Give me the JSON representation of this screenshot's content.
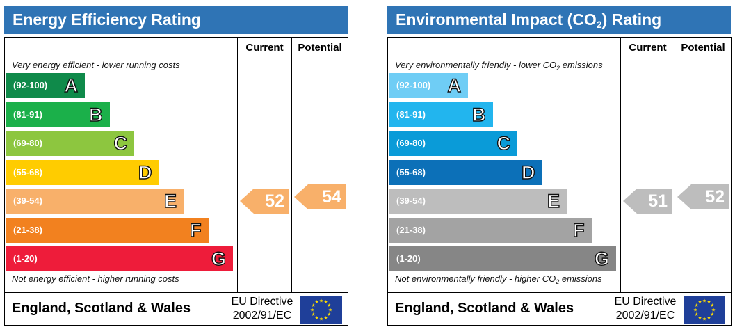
{
  "chart_data": [
    {
      "type": "bar",
      "title": "Energy Efficiency Rating",
      "columns": [
        "Current",
        "Potential"
      ],
      "top_note": "Very energy efficient - lower running costs",
      "bottom_note": "Not energy efficient - higher running costs",
      "bands": [
        {
          "range": "(92-100)",
          "letter": "A",
          "color": "#0f8a4a"
        },
        {
          "range": "(81-91)",
          "letter": "B",
          "color": "#1bb04a"
        },
        {
          "range": "(69-80)",
          "letter": "C",
          "color": "#8dc63f"
        },
        {
          "range": "(55-68)",
          "letter": "D",
          "color": "#ffcc00"
        },
        {
          "range": "(39-54)",
          "letter": "E",
          "color": "#f8b06a"
        },
        {
          "range": "(21-38)",
          "letter": "F",
          "color": "#f2811f"
        },
        {
          "range": "(1-20)",
          "letter": "G",
          "color": "#ee1c3a"
        }
      ],
      "current": {
        "value": 52,
        "band": "E",
        "color": "#f8b06a"
      },
      "potential": {
        "value": 54,
        "band": "E",
        "color": "#f8b06a"
      },
      "footer": {
        "region": "England, Scotland & Wales",
        "directive_line1": "EU Directive",
        "directive_line2": "2002/91/EC"
      }
    },
    {
      "type": "bar",
      "title_main": "Environmental Impact (CO",
      "title_sub": "2",
      "title_tail": ") Rating",
      "columns": [
        "Current",
        "Potential"
      ],
      "top_note_main": "Very environmentally friendly - lower CO",
      "top_note_sub": "2",
      "top_note_tail": " emissions",
      "bottom_note_main": "Not environmentally friendly - higher CO",
      "bottom_note_sub": "2",
      "bottom_note_tail": " emissions",
      "bands": [
        {
          "range": "(92-100)",
          "letter": "A",
          "color": "#6fcdf5"
        },
        {
          "range": "(81-91)",
          "letter": "B",
          "color": "#22b5ee"
        },
        {
          "range": "(69-80)",
          "letter": "C",
          "color": "#0a9bd8"
        },
        {
          "range": "(55-68)",
          "letter": "D",
          "color": "#0c70b8"
        },
        {
          "range": "(39-54)",
          "letter": "E",
          "color": "#bdbdbd"
        },
        {
          "range": "(21-38)",
          "letter": "F",
          "color": "#a3a3a3"
        },
        {
          "range": "(1-20)",
          "letter": "G",
          "color": "#868686"
        }
      ],
      "current": {
        "value": 51,
        "band": "E",
        "color": "#bdbdbd"
      },
      "potential": {
        "value": 52,
        "band": "E",
        "color": "#bdbdbd"
      },
      "footer": {
        "region": "England, Scotland & Wales",
        "directive_line1": "EU Directive",
        "directive_line2": "2002/91/EC"
      }
    }
  ],
  "colors": {
    "title_bar": "#2f74b5",
    "flag": "#1f3f99",
    "flag_stars": "#ffdd00"
  },
  "icons": {
    "flag": "eu-flag-icon"
  }
}
